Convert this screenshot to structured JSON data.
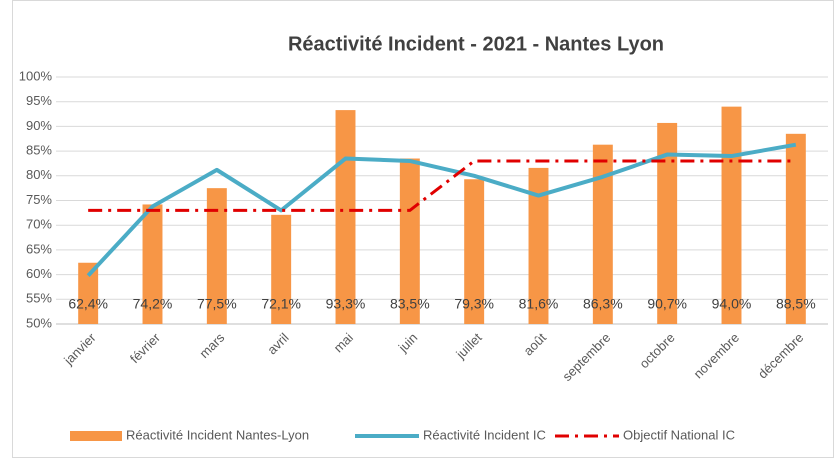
{
  "chart_data": {
    "type": "bar",
    "title": "Réactivité Incident - 2021 - Nantes Lyon",
    "categories": [
      "janvier",
      "février",
      "mars",
      "avril",
      "mai",
      "juin",
      "juillet",
      "août",
      "septembre",
      "octobre",
      "novembre",
      "décembre"
    ],
    "series": [
      {
        "name": "Réactivité Incident Nantes-Lyon",
        "type": "bar",
        "color": "#f79646",
        "values": [
          62.4,
          74.2,
          77.5,
          72.1,
          93.3,
          83.5,
          79.3,
          81.6,
          86.3,
          90.7,
          94.0,
          88.5
        ],
        "value_labels": [
          "62,4%",
          "74,2%",
          "77,5%",
          "72,1%",
          "93,3%",
          "83,5%",
          "79,3%",
          "81,6%",
          "86,3%",
          "90,7%",
          "94,0%",
          "88,5%"
        ]
      },
      {
        "name": "Réactivité Incident IC",
        "type": "line",
        "color": "#4bacc6",
        "dash": "solid",
        "values": [
          59.8,
          73.8,
          81.2,
          73.0,
          83.5,
          83.0,
          80.0,
          76.0,
          79.8,
          84.3,
          84.0,
          86.3
        ]
      },
      {
        "name": "Objectif National IC",
        "type": "line",
        "color": "#e00000",
        "dash": "dash-dot",
        "values": [
          73,
          73,
          73,
          73,
          73,
          73,
          83,
          83,
          83,
          83,
          83,
          83
        ]
      }
    ],
    "ylim": [
      50,
      100
    ],
    "yticks": [
      {
        "value": 50,
        "label": "50%"
      },
      {
        "value": 55,
        "label": "55%"
      },
      {
        "value": 60,
        "label": "60%"
      },
      {
        "value": 65,
        "label": "65%"
      },
      {
        "value": 70,
        "label": "70%"
      },
      {
        "value": 75,
        "label": "75%"
      },
      {
        "value": 80,
        "label": "80%"
      },
      {
        "value": 85,
        "label": "85%"
      },
      {
        "value": 90,
        "label": "90%"
      },
      {
        "value": 95,
        "label": "95%"
      },
      {
        "value": 100,
        "label": "100%"
      }
    ],
    "grid": true,
    "legend": "bottom"
  }
}
